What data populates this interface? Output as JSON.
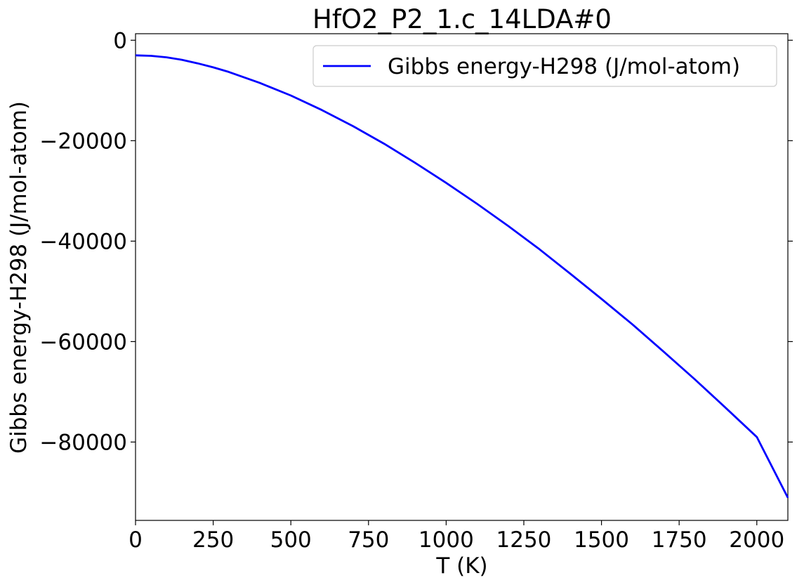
{
  "chart_data": {
    "type": "line",
    "title": "HfO2_P2_1.c_14LDA#0",
    "xlabel": "T (K)",
    "ylabel": "Gibbs energy-H298 (J/mol-atom)",
    "xlim": [
      0,
      2100
    ],
    "ylim": [
      -95600,
      1300
    ],
    "xticks": [
      0,
      250,
      500,
      750,
      1000,
      1250,
      1500,
      1750,
      2000
    ],
    "xtick_labels": [
      "0",
      "250",
      "500",
      "750",
      "1000",
      "1250",
      "1500",
      "1750",
      "2000"
    ],
    "yticks": [
      0,
      -20000,
      -40000,
      -60000,
      -80000
    ],
    "ytick_labels": [
      "0",
      "−20000",
      "−40000",
      "−60000",
      "−80000"
    ],
    "grid": false,
    "legend_position": "top-right",
    "series": [
      {
        "name": "Gibbs energy-H298 (J/mol-atom)",
        "color": "#0000ff",
        "x": [
          0,
          50,
          100,
          150,
          200,
          250,
          300,
          400,
          500,
          600,
          700,
          800,
          900,
          1000,
          1100,
          1200,
          1300,
          1400,
          1500,
          1600,
          1700,
          1800,
          1900,
          2000,
          2100
        ],
        "y": [
          -3000,
          -3100,
          -3400,
          -3900,
          -4600,
          -5400,
          -6300,
          -8500,
          -11000,
          -13900,
          -17100,
          -20600,
          -24400,
          -28400,
          -32600,
          -37000,
          -41600,
          -46500,
          -51500,
          -56600,
          -62000,
          -67500,
          -73200,
          -79000,
          -91100
        ]
      }
    ]
  }
}
